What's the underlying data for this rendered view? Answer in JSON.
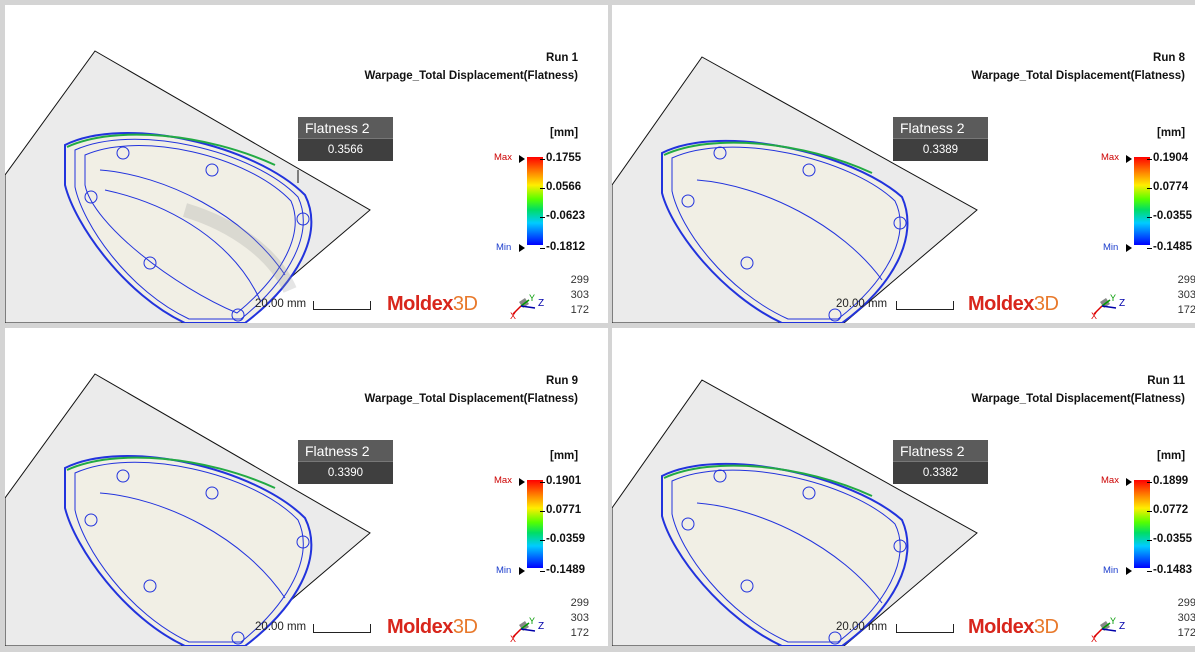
{
  "panels": [
    {
      "run": "Run 1",
      "title": "Warpage_Total Displacement(Flatness)",
      "flatness_label": "Flatness 2",
      "flatness_value": "0.3566",
      "unit": "[mm]",
      "max_label": "Max",
      "min_label": "Min",
      "legend": [
        "0.1755",
        "0.0566",
        "-0.0623",
        "-0.1812"
      ],
      "stats": [
        "299",
        "303",
        "172"
      ],
      "scale_label": "20.00 mm"
    },
    {
      "run": "Run 8",
      "title": "Warpage_Total Displacement(Flatness)",
      "flatness_label": "Flatness 2",
      "flatness_value": "0.3389",
      "unit": "[mm]",
      "max_label": "Max",
      "min_label": "Min",
      "legend": [
        "0.1904",
        "0.0774",
        "-0.0355",
        "-0.1485"
      ],
      "stats": [
        "299",
        "303",
        "172"
      ],
      "scale_label": "20.00 mm"
    },
    {
      "run": "Run 9",
      "title": "Warpage_Total Displacement(Flatness)",
      "flatness_label": "Flatness 2",
      "flatness_value": "0.3390",
      "unit": "[mm]",
      "max_label": "Max",
      "min_label": "Min",
      "legend": [
        "0.1901",
        "0.0771",
        "-0.0359",
        "-0.1489"
      ],
      "stats": [
        "299",
        "303",
        "172"
      ],
      "scale_label": "20.00 mm"
    },
    {
      "run": "Run 11",
      "title": "Warpage_Total Displacement(Flatness)",
      "flatness_label": "Flatness 2",
      "flatness_value": "0.3382",
      "unit": "[mm]",
      "max_label": "Max",
      "min_label": "Min",
      "legend": [
        "0.1899",
        "0.0772",
        "-0.0355",
        "-0.1483"
      ],
      "stats": [
        "299",
        "303",
        "172"
      ],
      "scale_label": "20.00 mm"
    }
  ],
  "brand": {
    "part1": "Moldex",
    "part2": "3D"
  },
  "axes": {
    "y": "Y",
    "z": "Z",
    "x": "X"
  },
  "colors": {
    "max": "#cc0000",
    "min": "#1a3ccc",
    "contour": "#2233dd",
    "plane": "#ebebeb"
  }
}
